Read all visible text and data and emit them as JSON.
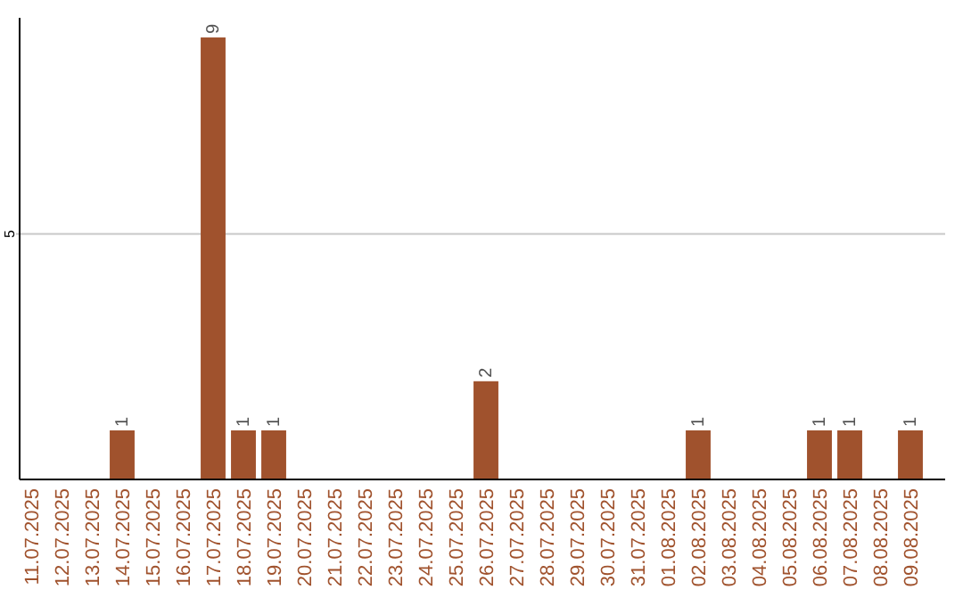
{
  "chart_data": {
    "type": "bar",
    "categories": [
      "11.07.2025",
      "12.07.2025",
      "13.07.2025",
      "14.07.2025",
      "15.07.2025",
      "16.07.2025",
      "17.07.2025",
      "18.07.2025",
      "19.07.2025",
      "20.07.2025",
      "21.07.2025",
      "22.07.2025",
      "23.07.2025",
      "24.07.2025",
      "25.07.2025",
      "26.07.2025",
      "27.07.2025",
      "28.07.2025",
      "29.07.2025",
      "30.07.2025",
      "31.07.2025",
      "01.08.2025",
      "02.08.2025",
      "03.08.2025",
      "04.08.2025",
      "05.08.2025",
      "06.08.2025",
      "07.08.2025",
      "08.08.2025",
      "09.08.2025"
    ],
    "values": [
      0,
      0,
      0,
      1,
      0,
      0,
      9,
      1,
      1,
      0,
      0,
      0,
      0,
      0,
      0,
      2,
      0,
      0,
      0,
      0,
      0,
      0,
      1,
      0,
      0,
      0,
      1,
      1,
      0,
      1
    ],
    "value_labels": [
      null,
      null,
      null,
      "1",
      null,
      null,
      "9",
      "1",
      "1",
      null,
      null,
      null,
      null,
      null,
      null,
      "2",
      null,
      null,
      null,
      null,
      null,
      null,
      "1",
      null,
      null,
      null,
      "1",
      "1",
      null,
      "1"
    ],
    "color": "#a0522d",
    "ylim": [
      0,
      9.4
    ],
    "yticks": [
      5
    ],
    "grid": "y"
  }
}
